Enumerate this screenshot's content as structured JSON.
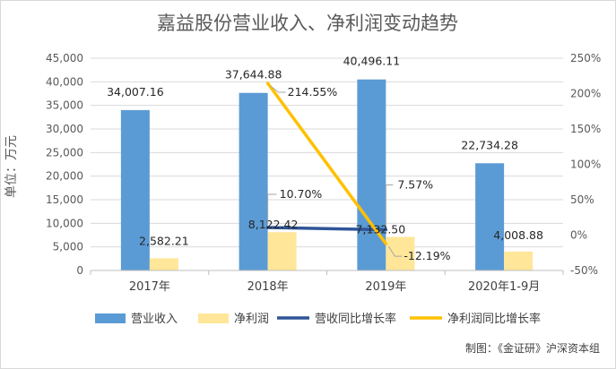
{
  "chart_data": {
    "type": "bar",
    "title": "嘉益股份营业收入、净利润变动趋势",
    "ylabel": "单位：万元",
    "categories": [
      "2017年",
      "2018年",
      "2019年",
      "2020年1-9月"
    ],
    "ylim": [
      0,
      45000
    ],
    "yticks": [
      "0",
      "5,000",
      "10,000",
      "15,000",
      "20,000",
      "25,000",
      "30,000",
      "35,000",
      "40,000",
      "45,000"
    ],
    "y2lim": [
      -50,
      250
    ],
    "y2ticks": [
      "-50%",
      "0%",
      "50%",
      "100%",
      "150%",
      "200%",
      "250%"
    ],
    "series": [
      {
        "name": "营业收入",
        "kind": "bar",
        "axis": "left",
        "color": "#5b9bd5",
        "values": [
          34007.16,
          37644.88,
          40496.11,
          22734.28
        ],
        "labels": [
          "34,007.16",
          "37,644.88",
          "40,496.11",
          "22,734.28"
        ]
      },
      {
        "name": "净利润",
        "kind": "bar",
        "axis": "left",
        "color": "#ffe699",
        "values": [
          2582.21,
          8122.42,
          7132.5,
          4008.88
        ],
        "labels": [
          "2,582.21",
          "8,122.42",
          "7,132.50",
          "4,008.88"
        ]
      },
      {
        "name": "营收同比增长率",
        "kind": "line",
        "axis": "right",
        "color": "#2f5597",
        "x": [
          "2018年",
          "2019年"
        ],
        "values": [
          10.7,
          7.57
        ],
        "labels": [
          "10.70%",
          "7.57%"
        ]
      },
      {
        "name": "净利润同比增长率",
        "kind": "line",
        "axis": "right",
        "color": "#ffc000",
        "x": [
          "2018年",
          "2019年"
        ],
        "values": [
          214.55,
          -12.19
        ],
        "labels": [
          "214.55%",
          "-12.19%"
        ]
      }
    ],
    "legend_position": "bottom",
    "grid": true,
    "source": "制图：《金证研》沪深资本组"
  }
}
